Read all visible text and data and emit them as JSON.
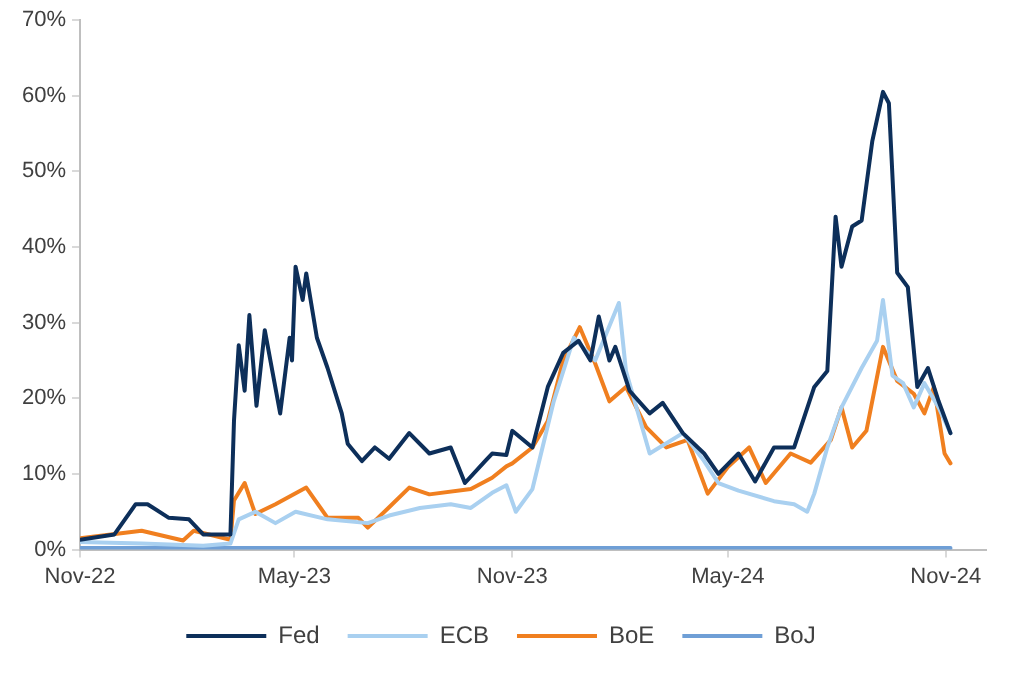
{
  "chart_data": {
    "type": "line",
    "xlim": [
      "2022-11-01",
      "2024-12-05"
    ],
    "xticks": [
      {
        "value": "2022-11-01",
        "label": "Nov-22"
      },
      {
        "value": "2023-05-01",
        "label": "May-23"
      },
      {
        "value": "2023-11-01",
        "label": "Nov-23"
      },
      {
        "value": "2024-05-01",
        "label": "May-24"
      },
      {
        "value": "2024-11-01",
        "label": "Nov-24"
      }
    ],
    "ylim": [
      0,
      70
    ],
    "yticks": [
      {
        "value": 0,
        "label": "0%"
      },
      {
        "value": 10,
        "label": "10%"
      },
      {
        "value": 20,
        "label": "20%"
      },
      {
        "value": 30,
        "label": "30%"
      },
      {
        "value": 40,
        "label": "40%"
      },
      {
        "value": 50,
        "label": "50%"
      },
      {
        "value": 60,
        "label": "60%"
      },
      {
        "value": 70,
        "label": "70%"
      }
    ],
    "grid": false,
    "legend": "bottom",
    "marker": "none",
    "line_style": "solid",
    "series": [
      {
        "name": "Fed",
        "color": "#0d2f5a",
        "x": [
          "2022-11-01",
          "2022-11-30",
          "2022-12-18",
          "2022-12-28",
          "2023-01-15",
          "2023-02-01",
          "2023-02-13",
          "2023-03-08",
          "2023-03-11",
          "2023-03-15",
          "2023-03-20",
          "2023-03-24",
          "2023-03-30",
          "2023-04-06",
          "2023-04-19",
          "2023-04-27",
          "2023-04-29",
          "2023-05-02",
          "2023-05-08",
          "2023-05-11",
          "2023-05-20",
          "2023-05-29",
          "2023-06-10",
          "2023-06-15",
          "2023-06-27",
          "2023-07-08",
          "2023-07-20",
          "2023-08-06",
          "2023-08-23",
          "2023-09-10",
          "2023-09-22",
          "2023-10-09",
          "2023-10-15",
          "2023-10-27",
          "2023-11-01",
          "2023-11-18",
          "2023-12-01",
          "2023-12-14",
          "2023-12-27",
          "2024-01-06",
          "2024-01-13",
          "2024-01-22",
          "2024-01-27",
          "2024-02-08",
          "2024-02-25",
          "2024-03-07",
          "2024-03-24",
          "2024-04-11",
          "2024-04-23",
          "2024-05-10",
          "2024-05-24",
          "2024-06-09",
          "2024-06-26",
          "2024-07-13",
          "2024-07-24",
          "2024-07-31",
          "2024-08-05",
          "2024-08-14",
          "2024-08-22",
          "2024-08-31",
          "2024-09-09",
          "2024-09-14",
          "2024-09-21",
          "2024-09-30",
          "2024-10-08",
          "2024-10-17",
          "2024-10-26",
          "2024-11-05"
        ],
        "values": [
          1.3,
          2,
          6,
          6,
          4.2,
          4,
          2,
          2,
          17,
          27,
          21,
          31,
          19,
          29,
          18,
          28,
          25,
          37.4,
          33,
          36.5,
          28,
          24,
          18,
          14,
          11.7,
          13.5,
          12,
          15.4,
          12.7,
          13.5,
          8.8,
          11.7,
          12.7,
          12.5,
          15.7,
          13.5,
          21.5,
          26,
          27.6,
          25,
          30.8,
          25,
          26.8,
          21,
          18,
          19.4,
          15.4,
          12.7,
          10,
          12.7,
          9,
          13.5,
          13.5,
          21.5,
          23.6,
          44,
          37.4,
          42.7,
          43.5,
          54,
          60.5,
          59,
          36.6,
          34.7,
          21.5,
          24,
          19.6,
          15.4
        ]
      },
      {
        "name": "ECB",
        "color": "#a9d0f0",
        "x": [
          "2022-11-01",
          "2022-12-23",
          "2023-02-13",
          "2023-03-08",
          "2023-03-15",
          "2023-03-29",
          "2023-04-15",
          "2023-05-02",
          "2023-05-29",
          "2023-07-02",
          "2023-07-20",
          "2023-08-15",
          "2023-09-10",
          "2023-09-27",
          "2023-10-15",
          "2023-10-27",
          "2023-11-04",
          "2023-11-18",
          "2023-12-06",
          "2023-12-23",
          "2024-01-10",
          "2024-01-30",
          "2024-02-05",
          "2024-02-25",
          "2024-03-24",
          "2024-04-11",
          "2024-04-23",
          "2024-05-10",
          "2024-06-09",
          "2024-06-26",
          "2024-07-07",
          "2024-07-13",
          "2024-07-24",
          "2024-08-05",
          "2024-08-22",
          "2024-09-04",
          "2024-09-09",
          "2024-09-17",
          "2024-09-26",
          "2024-10-05",
          "2024-10-14",
          "2024-10-26",
          "2024-11-05"
        ],
        "values": [
          1,
          0.8,
          0.5,
          0.8,
          4,
          5,
          3.5,
          5,
          4,
          3.5,
          4.5,
          5.5,
          6,
          5.5,
          7.5,
          8.5,
          5,
          8,
          19.6,
          28,
          25,
          32.6,
          23.6,
          12.7,
          15.4,
          11.7,
          8.8,
          7.8,
          6.4,
          6,
          5,
          7.4,
          13.5,
          18.8,
          24,
          27.6,
          33,
          23,
          22,
          18.8,
          22,
          18.8,
          15.4
        ]
      },
      {
        "name": "BoE",
        "color": "#f07f1f",
        "x": [
          "2022-11-01",
          "2022-12-23",
          "2023-01-27",
          "2023-02-05",
          "2023-03-08",
          "2023-03-11",
          "2023-03-20",
          "2023-03-29",
          "2023-04-15",
          "2023-05-11",
          "2023-05-29",
          "2023-06-24",
          "2023-07-02",
          "2023-07-20",
          "2023-08-06",
          "2023-08-23",
          "2023-09-27",
          "2023-10-15",
          "2023-10-27",
          "2023-11-01",
          "2023-11-18",
          "2023-12-01",
          "2023-12-14",
          "2023-12-28",
          "2024-01-10",
          "2024-01-22",
          "2024-02-05",
          "2024-02-22",
          "2024-03-10",
          "2024-03-28",
          "2024-04-14",
          "2024-05-01",
          "2024-05-19",
          "2024-06-02",
          "2024-06-23",
          "2024-07-10",
          "2024-07-27",
          "2024-08-05",
          "2024-08-14",
          "2024-08-26",
          "2024-09-09",
          "2024-09-21",
          "2024-10-05",
          "2024-10-14",
          "2024-10-22",
          "2024-10-31",
          "2024-11-05"
        ],
        "values": [
          1.5,
          2.5,
          1.2,
          2.5,
          1.3,
          6.5,
          8.8,
          4.7,
          6,
          8.2,
          4.2,
          4.2,
          2.9,
          5.6,
          8.2,
          7.3,
          8,
          9.5,
          11,
          11.4,
          13.5,
          17,
          25,
          29.4,
          24.6,
          19.6,
          21.5,
          16.2,
          13.5,
          14.5,
          7.4,
          10.9,
          13.5,
          8.8,
          12.7,
          11.5,
          14.5,
          18.8,
          13.5,
          15.7,
          26.8,
          22.3,
          20.6,
          18,
          21.5,
          12.7,
          11.4
        ]
      },
      {
        "name": "BoJ",
        "color": "#6f9fd6",
        "x": [
          "2022-11-01",
          "2024-11-05"
        ],
        "values": [
          0.2,
          0.2
        ]
      }
    ]
  }
}
